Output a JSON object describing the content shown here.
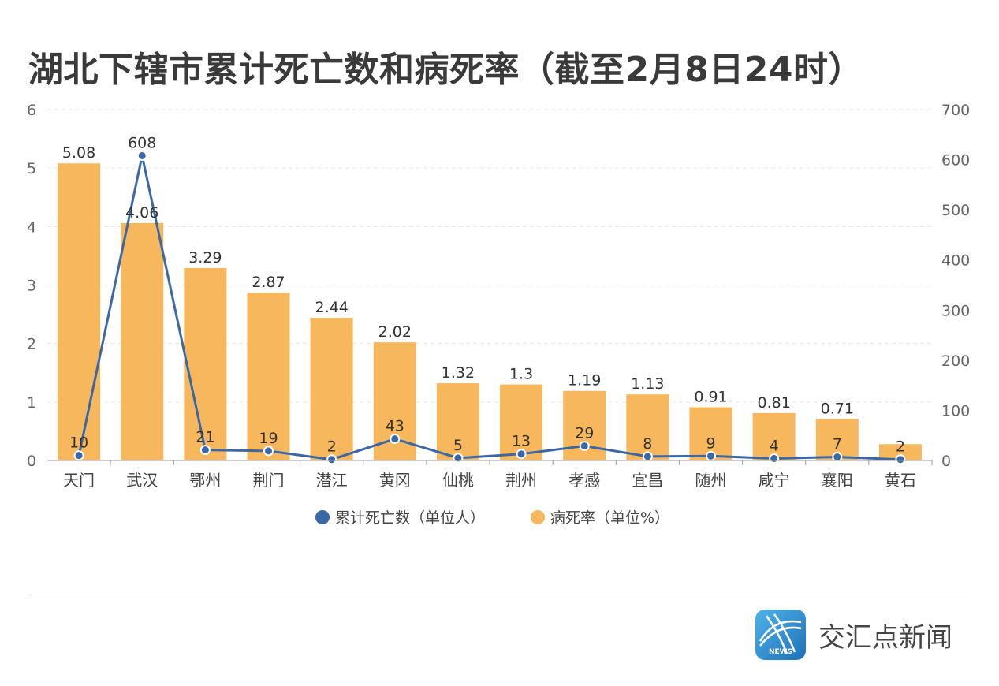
{
  "chart_data": {
    "type": "bar",
    "title": "湖北下辖市累计死亡数和病死率（截至2月8日24时）",
    "categories": [
      "天门",
      "武汉",
      "鄂州",
      "荆门",
      "潜江",
      "黄冈",
      "仙桃",
      "荆州",
      "孝感",
      "宜昌",
      "随州",
      "咸宁",
      "襄阳",
      "黄石"
    ],
    "series": [
      {
        "name": "病死率（单位%）",
        "type": "bar",
        "axis": "left",
        "color": "#f7b75c",
        "values": [
          5.08,
          4.06,
          3.29,
          2.87,
          2.44,
          2.02,
          1.32,
          1.3,
          1.19,
          1.13,
          0.91,
          0.81,
          0.71,
          0.28
        ],
        "labels": [
          "5.08",
          "4.06",
          "3.29",
          "2.87",
          "2.44",
          "2.02",
          "1.32",
          "1.3",
          "1.19",
          "1.13",
          "0.91",
          "0.81",
          "0.71",
          ""
        ]
      },
      {
        "name": "累计死亡数（单位人）",
        "type": "line",
        "axis": "right",
        "color": "#3a68a6",
        "values": [
          10,
          608,
          21,
          19,
          2,
          43,
          5,
          13,
          29,
          8,
          9,
          4,
          7,
          2
        ],
        "labels": [
          "10",
          "608",
          "21",
          "19",
          "2",
          "43",
          "5",
          "13",
          "29",
          "8",
          "9",
          "4",
          "7",
          "2"
        ]
      }
    ],
    "left_axis": {
      "min": 0,
      "max": 6,
      "ticks": [
        "0",
        "1",
        "2",
        "3",
        "4",
        "5",
        "6"
      ]
    },
    "right_axis": {
      "min": 0,
      "max": 700,
      "ticks": [
        "0",
        "100",
        "200",
        "300",
        "400",
        "500",
        "600",
        "700"
      ]
    },
    "grid": true,
    "legend_position": "bottom"
  },
  "brand": {
    "name": "交汇点新闻",
    "logo_text": "NEWS"
  }
}
